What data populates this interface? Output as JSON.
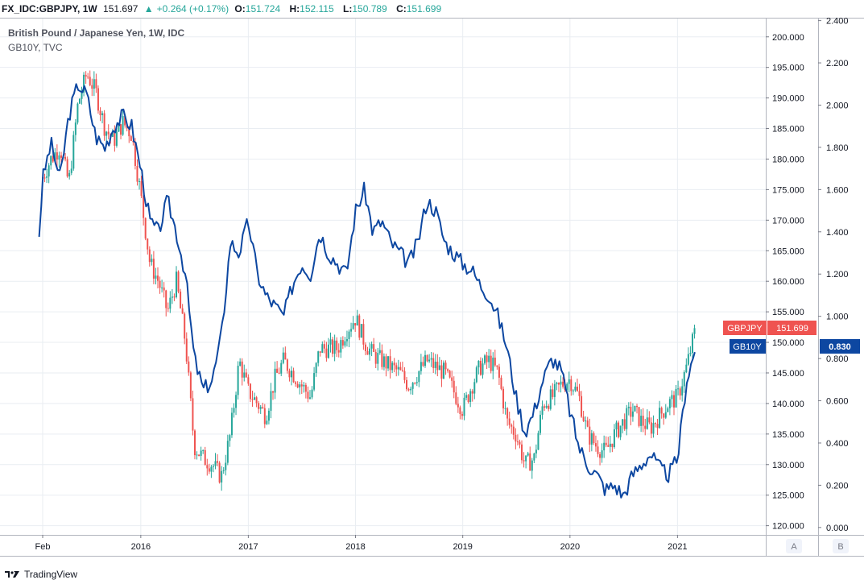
{
  "header": {
    "symbol": "FX_IDC:GBPJPY, 1W",
    "price": "151.697",
    "change": "+0.264 (+0.17%)",
    "o_label": "O:",
    "o_value": "151.724",
    "h_label": "H:",
    "h_value": "152.115",
    "l_label": "L:",
    "l_value": "150.789",
    "c_label": "C:",
    "c_value": "151.699"
  },
  "legend": {
    "title": "British Pound / Japanese Yen, 1W, IDC",
    "secondary": "GB10Y, TVC"
  },
  "footer": {
    "brand": "TradingView"
  },
  "colors": {
    "up": "#26a69a",
    "down": "#ef5350",
    "gb10y": "#0d47a1",
    "grid": "#e9edf2",
    "axis": "#787b86"
  },
  "chart_data": {
    "type": "line",
    "x_ticks": [
      "Feb",
      "2016",
      "2017",
      "2018",
      "2019",
      "2020",
      "2021"
    ],
    "scale_buttons": [
      "A",
      "B"
    ],
    "left_axis": {
      "series": "GBPJPY",
      "ticks": [
        "200.000",
        "195.000",
        "190.000",
        "185.000",
        "180.000",
        "175.000",
        "170.000",
        "165.000",
        "160.000",
        "155.000",
        "150.000",
        "145.000",
        "140.000",
        "135.000",
        "130.000",
        "125.000",
        "120.000"
      ],
      "ylim": [
        118.5,
        203.0
      ],
      "last_label": "GBPJPY",
      "last_value": "151.699"
    },
    "right_axis": {
      "series": "GB10Y",
      "ticks": [
        "2.400",
        "2.200",
        "2.000",
        "1.800",
        "1.600",
        "1.400",
        "1.200",
        "1.000",
        "0.800",
        "0.600",
        "0.400",
        "0.200",
        "0.000"
      ],
      "ylim": [
        -0.035,
        2.41
      ],
      "last_label": "GB10Y",
      "last_value": "0.830"
    },
    "series": [
      {
        "name": "GBPJPY",
        "style": "candlestick",
        "x": [
          "2015-02-01",
          "2015-03-01",
          "2015-04-01",
          "2015-05-01",
          "2015-06-01",
          "2015-07-01",
          "2015-08-01",
          "2015-09-01",
          "2015-10-01",
          "2015-11-01",
          "2015-12-01",
          "2016-01-01",
          "2016-02-01",
          "2016-03-01",
          "2016-04-01",
          "2016-05-01",
          "2016-06-01",
          "2016-07-01",
          "2016-08-01",
          "2016-09-01",
          "2016-10-01",
          "2016-11-01",
          "2016-12-01",
          "2017-01-01",
          "2017-02-01",
          "2017-03-01",
          "2017-04-01",
          "2017-05-01",
          "2017-06-01",
          "2017-07-01",
          "2017-08-01",
          "2017-09-01",
          "2017-10-01",
          "2017-11-01",
          "2017-12-01",
          "2018-01-01",
          "2018-02-01",
          "2018-03-01",
          "2018-04-01",
          "2018-05-01",
          "2018-06-01",
          "2018-07-01",
          "2018-08-01",
          "2018-09-01",
          "2018-10-01",
          "2018-11-01",
          "2018-12-01",
          "2019-01-01",
          "2019-02-01",
          "2019-03-01",
          "2019-04-01",
          "2019-05-01",
          "2019-06-01",
          "2019-07-01",
          "2019-08-01",
          "2019-09-01",
          "2019-10-01",
          "2019-11-01",
          "2019-12-01",
          "2020-01-01",
          "2020-02-01",
          "2020-03-01",
          "2020-04-01",
          "2020-05-01",
          "2020-06-01",
          "2020-07-01",
          "2020-08-01",
          "2020-09-01",
          "2020-10-01",
          "2020-11-01",
          "2020-12-01",
          "2021-01-01",
          "2021-02-01",
          "2021-03-01"
        ],
        "values": [
          177.0,
          180.0,
          182.0,
          176.0,
          189.0,
          194.0,
          191.0,
          185.0,
          183.0,
          186.0,
          184.0,
          174.0,
          163.0,
          160.0,
          155.0,
          160.0,
          150.0,
          133.0,
          131.0,
          130.0,
          128.0,
          135.0,
          147.0,
          142.0,
          140.0,
          138.0,
          144.0,
          147.0,
          145.0,
          143.0,
          141.0,
          149.0,
          149.0,
          149.0,
          152.0,
          154.0,
          150.0,
          148.0,
          147.0,
          146.0,
          145.0,
          143.0,
          145.0,
          147.0,
          146.0,
          145.0,
          142.0,
          139.0,
          143.0,
          146.0,
          147.0,
          145.0,
          137.0,
          135.0,
          130.0,
          131.0,
          140.0,
          141.0,
          143.0,
          144.0,
          141.0,
          135.0,
          133.0,
          132.0,
          135.0,
          137.0,
          139.0,
          137.0,
          136.0,
          138.0,
          140.0,
          141.0,
          146.0,
          151.7
        ]
      },
      {
        "name": "GB10Y",
        "style": "line",
        "x": [
          "2015-01-20",
          "2015-02-01",
          "2015-03-01",
          "2015-04-01",
          "2015-05-01",
          "2015-06-01",
          "2015-07-01",
          "2015-08-01",
          "2015-09-01",
          "2015-10-01",
          "2015-11-01",
          "2015-12-01",
          "2016-01-01",
          "2016-02-01",
          "2016-03-01",
          "2016-04-01",
          "2016-05-01",
          "2016-06-01",
          "2016-07-01",
          "2016-08-01",
          "2016-09-01",
          "2016-10-01",
          "2016-11-01",
          "2016-12-01",
          "2017-01-01",
          "2017-02-01",
          "2017-03-01",
          "2017-04-01",
          "2017-05-01",
          "2017-06-01",
          "2017-07-01",
          "2017-08-01",
          "2017-09-01",
          "2017-10-01",
          "2017-11-01",
          "2017-12-01",
          "2018-01-01",
          "2018-02-01",
          "2018-03-01",
          "2018-04-01",
          "2018-05-01",
          "2018-06-01",
          "2018-07-01",
          "2018-08-01",
          "2018-09-01",
          "2018-10-01",
          "2018-11-01",
          "2018-12-01",
          "2019-01-01",
          "2019-02-01",
          "2019-03-01",
          "2019-04-01",
          "2019-05-01",
          "2019-06-01",
          "2019-07-01",
          "2019-08-01",
          "2019-09-01",
          "2019-10-01",
          "2019-11-01",
          "2019-12-01",
          "2020-01-01",
          "2020-02-01",
          "2020-03-01",
          "2020-04-01",
          "2020-05-01",
          "2020-06-01",
          "2020-07-01",
          "2020-08-01",
          "2020-09-01",
          "2020-10-01",
          "2020-11-01",
          "2020-12-01",
          "2021-01-01",
          "2021-02-01",
          "2021-03-01"
        ],
        "values": [
          1.39,
          1.65,
          1.82,
          1.65,
          1.95,
          2.1,
          2.05,
          1.85,
          1.8,
          1.9,
          1.95,
          1.9,
          1.7,
          1.45,
          1.4,
          1.55,
          1.4,
          1.2,
          0.8,
          0.65,
          0.7,
          0.9,
          1.35,
          1.3,
          1.45,
          1.2,
          1.1,
          1.05,
          1.0,
          1.15,
          1.25,
          1.2,
          1.4,
          1.3,
          1.25,
          1.2,
          1.5,
          1.6,
          1.4,
          1.45,
          1.35,
          1.3,
          1.25,
          1.35,
          1.55,
          1.5,
          1.35,
          1.3,
          1.25,
          1.22,
          1.15,
          1.1,
          1.0,
          0.85,
          0.62,
          0.45,
          0.55,
          0.7,
          0.8,
          0.75,
          0.55,
          0.38,
          0.3,
          0.25,
          0.18,
          0.2,
          0.15,
          0.25,
          0.3,
          0.35,
          0.28,
          0.25,
          0.32,
          0.7,
          0.83
        ]
      }
    ]
  }
}
